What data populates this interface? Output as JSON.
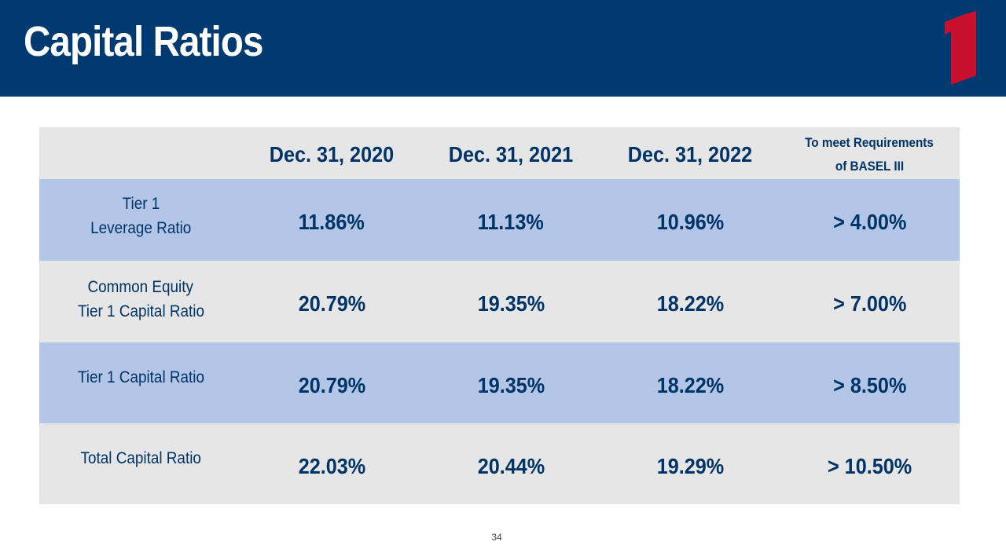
{
  "slide": {
    "title": "Capital Ratios",
    "page_number": "34"
  },
  "colors": {
    "header_bg": "#003a70",
    "logo_red": "#c8102e",
    "row_blue": "#b4c6e7",
    "row_gray": "#e6e6e6",
    "text_navy": "#003366"
  },
  "table": {
    "columns": [
      "Dec. 31, 2020",
      "Dec. 31, 2021",
      "Dec. 31, 2022"
    ],
    "requirement_header": [
      "To meet Requirements",
      "of BASEL III"
    ],
    "rows": [
      {
        "label": [
          "Tier 1",
          "Leverage Ratio"
        ],
        "values": [
          "11.86%",
          "11.13%",
          "10.96%"
        ],
        "requirement": "> 4.00%"
      },
      {
        "label": [
          "Common Equity",
          "Tier 1 Capital Ratio"
        ],
        "values": [
          "20.79%",
          "19.35%",
          "18.22%"
        ],
        "requirement": "> 7.00%"
      },
      {
        "label": [
          "Tier 1 Capital Ratio"
        ],
        "values": [
          "20.79%",
          "19.35%",
          "18.22%"
        ],
        "requirement": "> 8.50%"
      },
      {
        "label": [
          "Total Capital Ratio"
        ],
        "values": [
          "22.03%",
          "20.44%",
          "19.29%"
        ],
        "requirement": "> 10.50%"
      }
    ]
  }
}
